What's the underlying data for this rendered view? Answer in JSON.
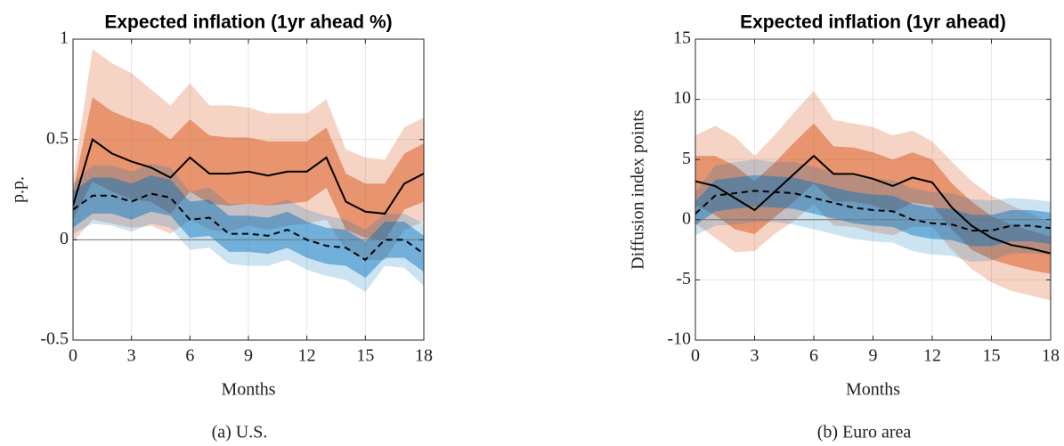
{
  "chart_data": [
    {
      "type": "band-line",
      "title": "Expected inflation (1yr ahead %)",
      "xlabel": "Months",
      "ylabel": "p.p.",
      "caption": "(a) U.S.",
      "x": [
        0,
        1,
        2,
        3,
        4,
        5,
        6,
        7,
        8,
        9,
        10,
        11,
        12,
        13,
        14,
        15,
        16,
        17,
        18
      ],
      "xlim": [
        0,
        18
      ],
      "xticks": [
        0,
        3,
        6,
        9,
        12,
        15,
        18
      ],
      "ylim": [
        -0.5,
        1
      ],
      "yticks": [
        -0.5,
        0,
        0.5,
        1
      ],
      "grid": true,
      "zero_line": true,
      "series": [
        {
          "kind": "band",
          "color": "#d95319",
          "opacity": 0.25,
          "upper": [
            0.3,
            0.95,
            0.88,
            0.83,
            0.75,
            0.67,
            0.78,
            0.67,
            0.67,
            0.66,
            0.63,
            0.63,
            0.63,
            0.7,
            0.45,
            0.41,
            0.4,
            0.56,
            0.61
          ],
          "lower": [
            -0.01,
            0.1,
            0.08,
            0.06,
            0.07,
            0.03,
            0.1,
            0.05,
            0.04,
            0.07,
            0.05,
            0.07,
            0.08,
            0.1,
            -0.05,
            -0.1,
            -0.1,
            0.05,
            0.09
          ]
        },
        {
          "kind": "band",
          "color": "#d95319",
          "opacity": 0.5,
          "upper": [
            0.24,
            0.71,
            0.64,
            0.6,
            0.57,
            0.5,
            0.6,
            0.52,
            0.51,
            0.51,
            0.49,
            0.49,
            0.49,
            0.56,
            0.33,
            0.28,
            0.28,
            0.43,
            0.48
          ],
          "lower": [
            0.1,
            0.29,
            0.24,
            0.2,
            0.19,
            0.13,
            0.24,
            0.18,
            0.17,
            0.18,
            0.17,
            0.18,
            0.19,
            0.26,
            0.05,
            0.01,
            0.0,
            0.15,
            0.19
          ]
        },
        {
          "kind": "band",
          "color": "#0072bd",
          "opacity": 0.2,
          "upper": [
            0.28,
            0.37,
            0.37,
            0.34,
            0.38,
            0.36,
            0.24,
            0.26,
            0.18,
            0.18,
            0.17,
            0.2,
            0.15,
            0.12,
            0.1,
            0.05,
            0.13,
            0.13,
            0.08
          ],
          "lower": [
            0.03,
            0.08,
            0.07,
            0.04,
            0.08,
            0.06,
            -0.05,
            -0.04,
            -0.12,
            -0.13,
            -0.13,
            -0.1,
            -0.15,
            -0.18,
            -0.2,
            -0.26,
            -0.13,
            -0.14,
            -0.23
          ]
        },
        {
          "kind": "band",
          "color": "#0072bd",
          "opacity": 0.45,
          "upper": [
            0.24,
            0.31,
            0.31,
            0.28,
            0.32,
            0.3,
            0.19,
            0.2,
            0.12,
            0.12,
            0.11,
            0.14,
            0.09,
            0.06,
            0.05,
            -0.01,
            0.09,
            0.09,
            0.02
          ],
          "lower": [
            0.06,
            0.13,
            0.13,
            0.1,
            0.14,
            0.12,
            0.01,
            0.02,
            -0.06,
            -0.06,
            -0.07,
            -0.04,
            -0.09,
            -0.12,
            -0.13,
            -0.19,
            -0.09,
            -0.09,
            -0.16
          ]
        },
        {
          "kind": "line",
          "color": "#000000",
          "dashed": false,
          "values": [
            0.17,
            0.5,
            0.43,
            0.39,
            0.36,
            0.31,
            0.41,
            0.33,
            0.33,
            0.34,
            0.32,
            0.34,
            0.34,
            0.41,
            0.19,
            0.14,
            0.13,
            0.28,
            0.33
          ]
        },
        {
          "kind": "line",
          "color": "#000000",
          "dashed": true,
          "values": [
            0.15,
            0.22,
            0.22,
            0.19,
            0.23,
            0.21,
            0.1,
            0.11,
            0.03,
            0.03,
            0.02,
            0.05,
            0.0,
            -0.03,
            -0.04,
            -0.1,
            0.0,
            0.0,
            -0.07
          ]
        }
      ]
    },
    {
      "type": "band-line",
      "title": "Expected inflation (1yr ahead)",
      "xlabel": "Months",
      "ylabel": "Diffusion index points",
      "caption": "(b) Euro area",
      "x": [
        0,
        1,
        2,
        3,
        4,
        5,
        6,
        7,
        8,
        9,
        10,
        11,
        12,
        13,
        14,
        15,
        16,
        17,
        18
      ],
      "xlim": [
        0,
        18
      ],
      "xticks": [
        0,
        3,
        6,
        9,
        12,
        15,
        18
      ],
      "ylim": [
        -10,
        15
      ],
      "yticks": [
        -10,
        -5,
        0,
        5,
        10,
        15
      ],
      "grid": true,
      "zero_line": true,
      "series": [
        {
          "kind": "band",
          "color": "#d95319",
          "opacity": 0.25,
          "upper": [
            7,
            7.8,
            6.9,
            5.3,
            7,
            8.9,
            10.7,
            8.3,
            8,
            7.7,
            7,
            7.4,
            6.5,
            4.8,
            3.2,
            2,
            1.2,
            0.5,
            -0.3
          ],
          "lower": [
            -0.3,
            -1.5,
            -2.7,
            -2.6,
            -1.2,
            -0.1,
            1.3,
            -0.5,
            -0.6,
            -1,
            -1.3,
            -0.6,
            -0.6,
            -2.5,
            -4.1,
            -5.2,
            -5.9,
            -6.3,
            -6.7
          ]
        },
        {
          "kind": "band",
          "color": "#d95319",
          "opacity": 0.5,
          "upper": [
            5.3,
            5.3,
            4.5,
            3.2,
            4.7,
            6.4,
            8.0,
            6.1,
            6,
            5.6,
            5,
            5.6,
            5.0,
            3,
            1.5,
            0.3,
            -0.4,
            -0.9,
            -1.4
          ],
          "lower": [
            1.2,
            0.4,
            -0.8,
            -1.2,
            0.2,
            1.5,
            3,
            1.5,
            1.5,
            1.2,
            0.6,
            1.4,
            1.2,
            -0.8,
            -2.5,
            -3.3,
            -3.8,
            -4.2,
            -4.5
          ]
        },
        {
          "kind": "band",
          "color": "#0072bd",
          "opacity": 0.2,
          "upper": [
            2.3,
            4.5,
            4.8,
            5,
            4.8,
            4.8,
            4.4,
            4,
            3.6,
            3.4,
            3.3,
            2.6,
            2.3,
            2.2,
            1.7,
            1.6,
            1.8,
            1.7,
            1.5
          ],
          "lower": [
            -1.3,
            -0.5,
            -0.4,
            -0.2,
            -0.2,
            -0.4,
            -0.8,
            -1.2,
            -1.6,
            -1.8,
            -1.9,
            -2.6,
            -2.9,
            -3,
            -3.5,
            -3.4,
            -2.8,
            -2.8,
            -2.9
          ]
        },
        {
          "kind": "band",
          "color": "#0072bd",
          "opacity": 0.45,
          "upper": [
            1.5,
            3.3,
            3.5,
            3.7,
            3.6,
            3.5,
            3.1,
            2.7,
            2.3,
            2.1,
            2.0,
            1.3,
            1.0,
            0.9,
            0.4,
            0.4,
            0.8,
            0.8,
            0.6
          ],
          "lower": [
            -0.5,
            0.7,
            0.9,
            1.1,
            1.0,
            0.9,
            0.5,
            0.1,
            -0.3,
            -0.5,
            -0.6,
            -1.3,
            -1.6,
            -1.7,
            -2.2,
            -2.2,
            -1.8,
            -1.8,
            -2.0
          ]
        },
        {
          "kind": "line",
          "color": "#000000",
          "dashed": false,
          "values": [
            3.2,
            2.8,
            1.8,
            0.8,
            2.3,
            3.8,
            5.3,
            3.8,
            3.8,
            3.4,
            2.8,
            3.5,
            3.1,
            1.0,
            -0.5,
            -1.5,
            -2.1,
            -2.4,
            -2.8
          ]
        },
        {
          "kind": "line",
          "color": "#000000",
          "dashed": true,
          "values": [
            0.5,
            2.0,
            2.2,
            2.4,
            2.3,
            2.2,
            1.8,
            1.4,
            1.0,
            0.8,
            0.7,
            0.0,
            -0.3,
            -0.4,
            -0.9,
            -0.9,
            -0.5,
            -0.5,
            -0.7
          ]
        }
      ]
    }
  ]
}
